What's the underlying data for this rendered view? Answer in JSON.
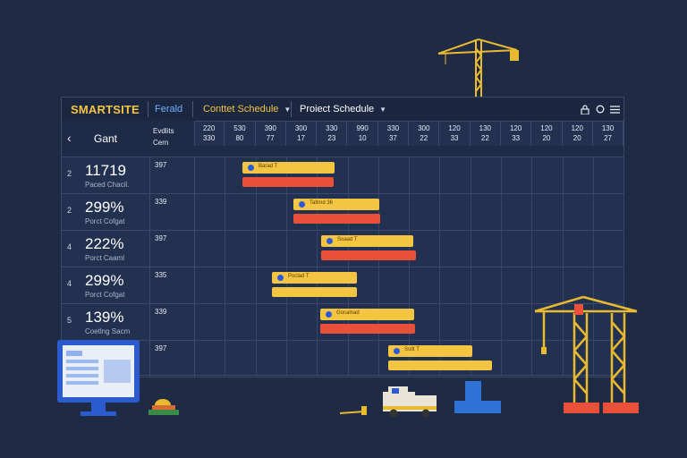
{
  "toolbar": {
    "brand": "SMARTSITE",
    "period_label": "Ferald",
    "dropdown_1": "Conttet Schedule",
    "dropdown_2": "Proiect Schedule",
    "icon_1": "lock-icon",
    "icon_2": "circle-icon",
    "icon_3": "menu-icon"
  },
  "header": {
    "back_glyph": "‹",
    "title": "Gant",
    "category_line1": "Evdlits",
    "category_line2": "Cern"
  },
  "columns": [
    {
      "l1": "220",
      "l2": "330"
    },
    {
      "l1": "530",
      "l2": "80"
    },
    {
      "l1": "390",
      "l2": "77"
    },
    {
      "l1": "300",
      "l2": "17"
    },
    {
      "l1": "330",
      "l2": "23"
    },
    {
      "l1": "990",
      "l2": "10"
    },
    {
      "l1": "330",
      "l2": "37"
    },
    {
      "l1": "300",
      "l2": "22"
    },
    {
      "l1": "120",
      "l2": "33"
    },
    {
      "l1": "130",
      "l2": "22"
    },
    {
      "l1": "120",
      "l2": "33"
    },
    {
      "l1": "120",
      "l2": "20"
    },
    {
      "l1": "120",
      "l2": "20"
    },
    {
      "l1": "130",
      "l2": "27"
    }
  ],
  "rows": [
    {
      "num": "2",
      "big": "11719",
      "small": "Paced Chacil.",
      "cat": "397",
      "bar_label": "Barad T"
    },
    {
      "num": "2",
      "big": "299%",
      "small": "Porct Cofgat",
      "cat": "339",
      "bar_label": "Taltmd 36"
    },
    {
      "num": "4",
      "big": "222%",
      "small": "Porct Caaml",
      "cat": "397",
      "bar_label": "Soaad T"
    },
    {
      "num": "4",
      "big": "299%",
      "small": "Porct Cofgat",
      "cat": "335",
      "bar_label": "Poclad T"
    },
    {
      "num": "5",
      "big": "139%",
      "small": "Coetlng Sacm",
      "cat": "339",
      "bar_label": "Gocalnad"
    },
    {
      "num": "",
      "big": "",
      "small": "",
      "cat": "397",
      "bar_label": "Sstlt T"
    }
  ],
  "colors": {
    "accent_yellow": "#f4c542",
    "accent_red": "#e8503a",
    "background": "#1f2a44"
  }
}
